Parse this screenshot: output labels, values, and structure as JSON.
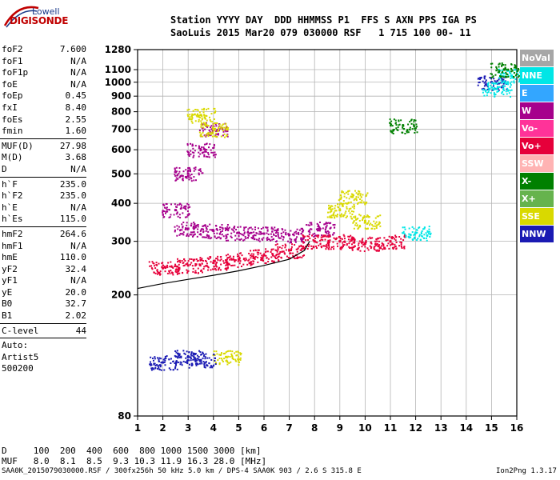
{
  "logo": {
    "line1": "Lowell",
    "line2": "DIGISONDE"
  },
  "header": {
    "line1": "Station YYYY DAY  DDD HHMMSS P1  FFS S AXN PPS IGA PS",
    "line2": "SaoLuis 2015 Mar20 079 030000 RSF   1 715 100 00- 11"
  },
  "params": [
    [
      {
        "name": "foF2",
        "value": "7.600"
      },
      {
        "name": "foF1",
        "value": "N/A"
      },
      {
        "name": "foF1p",
        "value": "N/A"
      },
      {
        "name": "foE",
        "value": "N/A"
      },
      {
        "name": "foEp",
        "value": "0.45"
      },
      {
        "name": "fxI",
        "value": "8.40"
      },
      {
        "name": "foEs",
        "value": "2.55"
      },
      {
        "name": "fmin",
        "value": "1.60"
      }
    ],
    [
      {
        "name": "MUF(D)",
        "value": "27.98"
      },
      {
        "name": "M(D)",
        "value": "3.68"
      },
      {
        "name": "D",
        "value": "N/A"
      }
    ],
    [
      {
        "name": "h`F",
        "value": "235.0"
      },
      {
        "name": "h`F2",
        "value": "235.0"
      },
      {
        "name": "h`E",
        "value": "N/A"
      },
      {
        "name": "h`Es",
        "value": "115.0"
      }
    ],
    [
      {
        "name": "hmF2",
        "value": "264.6"
      },
      {
        "name": "hmF1",
        "value": "N/A"
      },
      {
        "name": "hmE",
        "value": "110.0"
      },
      {
        "name": "yF2",
        "value": "32.4"
      },
      {
        "name": "yF1",
        "value": "N/A"
      },
      {
        "name": "yE",
        "value": "20.0"
      },
      {
        "name": "B0",
        "value": "32.7"
      },
      {
        "name": "B1",
        "value": "2.02"
      }
    ],
    [
      {
        "name": "C-level",
        "value": "44"
      }
    ]
  ],
  "auto": {
    "label": "Auto:",
    "program": "Artist5",
    "version": "500200"
  },
  "footer": {
    "d_row": "D     100  200  400  600  800 1000 1500 3000 [km]",
    "muf_row": "MUF   8.0  8.1  8.5  9.3 10.3 11.9 16.3 28.0 [MHz]",
    "file_info": "SAA0K_2015079030000.RSF / 300fx256h 50 kHz 5.0 km / DPS-4 SAA0K 903 / 2.6 S 315.8 E",
    "program": "Ion2Png 1.3.17"
  },
  "legend": [
    {
      "label": "NoVal",
      "color": "#a6a6a6"
    },
    {
      "label": "NNE",
      "color": "#00e6e6"
    },
    {
      "label": "E",
      "color": "#33a6ff"
    },
    {
      "label": "W",
      "color": "#a6008c"
    },
    {
      "label": "Vo-",
      "color": "#ff3399"
    },
    {
      "label": "Vo+",
      "color": "#e6003a"
    },
    {
      "label": "SSW",
      "color": "#ffb3b3"
    },
    {
      "label": "X-",
      "color": "#008000"
    },
    {
      "label": "X+",
      "color": "#66b34d"
    },
    {
      "label": "SSE",
      "color": "#d9d900"
    },
    {
      "label": "NNW",
      "color": "#1a1ab3"
    }
  ],
  "chart_data": {
    "type": "scatter",
    "title": "",
    "xlabel": "",
    "ylabel": "",
    "xlim": [
      1,
      16
    ],
    "ylim": [
      80,
      1280
    ],
    "x_ticks": [
      1,
      2,
      3,
      4,
      5,
      6,
      7,
      8,
      9,
      10,
      11,
      12,
      13,
      14,
      15,
      16
    ],
    "y_ticks": [
      80,
      200,
      300,
      400,
      500,
      600,
      700,
      800,
      900,
      1000,
      1100,
      1280
    ],
    "y_scale": "log",
    "grid": true,
    "trace_curve": {
      "x": [
        1.0,
        2.0,
        3.0,
        4.0,
        5.0,
        6.0,
        7.0,
        7.6,
        7.8
      ],
      "y": [
        210,
        218,
        225,
        232,
        240,
        250,
        262,
        280,
        300
      ]
    },
    "series": [
      {
        "name": "W",
        "points": [
          [
            3.0,
            330
          ],
          [
            4.0,
            325
          ],
          [
            5.0,
            320
          ],
          [
            6.0,
            318
          ],
          [
            7.0,
            315
          ],
          [
            3.0,
            500
          ],
          [
            3.5,
            600
          ],
          [
            4.0,
            700
          ],
          [
            2.5,
            380
          ],
          [
            8.2,
            330
          ]
        ]
      },
      {
        "name": "Vo+",
        "points": [
          [
            2.0,
            245
          ],
          [
            3.0,
            250
          ],
          [
            4.0,
            255
          ],
          [
            5.0,
            262
          ],
          [
            6.0,
            270
          ],
          [
            7.0,
            280
          ],
          [
            8.0,
            300
          ],
          [
            9.0,
            300
          ],
          [
            10.0,
            295
          ],
          [
            11.0,
            300
          ]
        ]
      },
      {
        "name": "SSE",
        "points": [
          [
            3.5,
            780
          ],
          [
            4.0,
            700
          ],
          [
            9.0,
            380
          ],
          [
            9.5,
            420
          ],
          [
            10.0,
            350
          ],
          [
            4.5,
            125
          ]
        ]
      },
      {
        "name": "NNW",
        "points": [
          [
            2.0,
            120
          ],
          [
            3.0,
            125
          ],
          [
            3.5,
            122
          ],
          [
            15.0,
            1000
          ]
        ]
      },
      {
        "name": "NNE",
        "points": [
          [
            15.2,
            950
          ],
          [
            15.8,
            1050
          ],
          [
            12.0,
            320
          ]
        ]
      },
      {
        "name": "X-",
        "points": [
          [
            11.5,
            720
          ],
          [
            15.5,
            1100
          ]
        ]
      }
    ]
  }
}
